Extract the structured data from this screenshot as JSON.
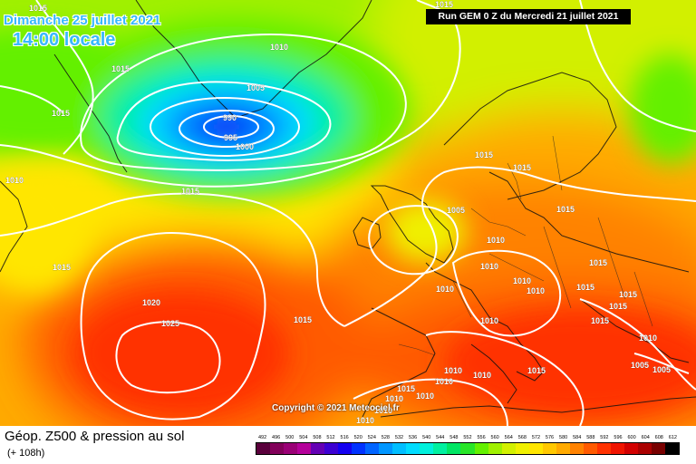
{
  "header": {
    "date": "Dimanche 25 juillet 2021",
    "time": "14:00 locale",
    "run": "Run GEM 0 Z du Mercredi 21 juillet 2021"
  },
  "copyright": "Copyright © 2021 Meteociel.fr",
  "legend": {
    "title": "Géop. Z500 & pression au sol",
    "subtitle": "(+ 108h)",
    "scale_values": [
      "492",
      "496",
      "500",
      "504",
      "508",
      "512",
      "516",
      "520",
      "524",
      "528",
      "532",
      "536",
      "540",
      "544",
      "548",
      "552",
      "556",
      "560",
      "564",
      "568",
      "572",
      "576",
      "580",
      "584",
      "588",
      "592",
      "596",
      "600",
      "604",
      "608",
      "612"
    ],
    "scale_colors": [
      "#5a003c",
      "#82005a",
      "#9a0076",
      "#b4009a",
      "#6400b4",
      "#3c00d2",
      "#1400f0",
      "#0032ff",
      "#0064ff",
      "#0096ff",
      "#00beff",
      "#00dcff",
      "#00f0dc",
      "#00f0a0",
      "#00e664",
      "#28e628",
      "#64f000",
      "#a0f000",
      "#d2f000",
      "#f0f000",
      "#ffe600",
      "#ffc800",
      "#ffaa00",
      "#ff8200",
      "#ff5a00",
      "#ff3200",
      "#f01400",
      "#d20000",
      "#aa0000",
      "#780000",
      "#000000"
    ]
  },
  "map": {
    "isobar_labels": [
      {
        "text": "1015",
        "role": "greenland-north"
      },
      {
        "text": "1010",
        "role": "iceland-north"
      },
      {
        "text": "1015",
        "role": "west-greenland"
      },
      {
        "text": "1015",
        "role": "greenland-west-coast"
      },
      {
        "text": "1005",
        "role": "low-outer"
      },
      {
        "text": "990",
        "role": "low-center"
      },
      {
        "text": "995",
        "role": "low-inner"
      },
      {
        "text": "1000",
        "role": "low-middle"
      },
      {
        "text": "1015",
        "role": "north-top-right"
      },
      {
        "text": "1010",
        "role": "labrador"
      },
      {
        "text": "1015",
        "role": "mid-atlantic"
      },
      {
        "text": "1015",
        "role": "newfoundland"
      },
      {
        "text": "1020",
        "role": "azores-outer"
      },
      {
        "text": "1025",
        "role": "azores-center"
      },
      {
        "text": "1015",
        "role": "bay-of-biscay"
      },
      {
        "text": "1005",
        "role": "north-sea"
      },
      {
        "text": "1010",
        "role": "denmark"
      },
      {
        "text": "1015",
        "role": "scandinavia-1"
      },
      {
        "text": "1015",
        "role": "scandinavia-2"
      },
      {
        "text": "1015",
        "role": "baltic"
      },
      {
        "text": "1010",
        "role": "germany"
      },
      {
        "text": "1010",
        "role": "benelux"
      },
      {
        "text": "1010",
        "role": "france"
      },
      {
        "text": "1010",
        "role": "alps"
      },
      {
        "text": "1015",
        "role": "poland"
      },
      {
        "text": "1010",
        "role": "italy"
      },
      {
        "text": "1015",
        "role": "balkans"
      },
      {
        "text": "1015",
        "role": "hungary"
      },
      {
        "text": "1015",
        "role": "romania"
      },
      {
        "text": "1015",
        "role": "ukraine"
      },
      {
        "text": "1010",
        "role": "turkey"
      },
      {
        "text": "1005",
        "role": "anatolia"
      },
      {
        "text": "1005",
        "role": "caucasus"
      },
      {
        "text": "1015",
        "role": "central-med"
      },
      {
        "text": "1010",
        "role": "sardinia"
      },
      {
        "text": "1010",
        "role": "tyrrhenian"
      },
      {
        "text": "1010",
        "role": "spain-east"
      },
      {
        "text": "1015",
        "role": "spain-south"
      },
      {
        "text": "1010",
        "role": "iberia"
      },
      {
        "text": "1010",
        "role": "morocco"
      },
      {
        "text": "1010",
        "role": "algeria"
      },
      {
        "text": "1010",
        "role": "north-africa"
      }
    ]
  }
}
